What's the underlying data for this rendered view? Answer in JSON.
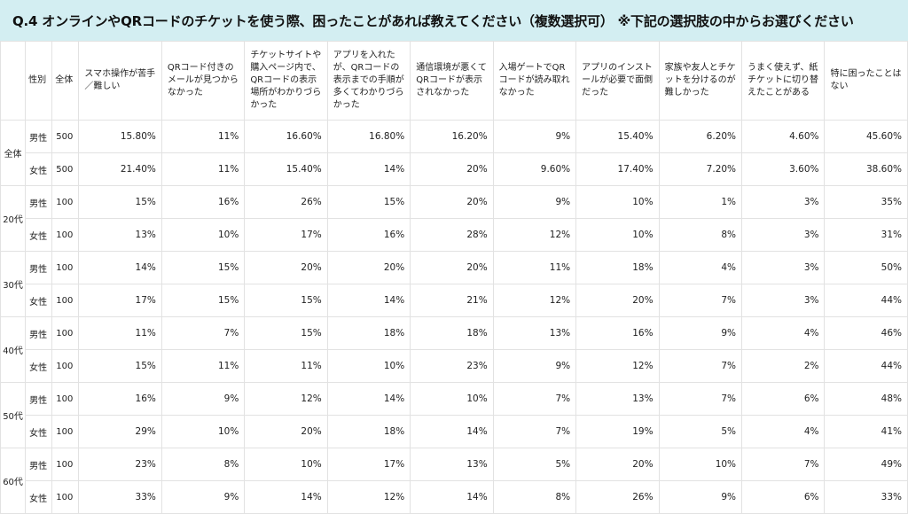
{
  "title": "Q.4 オンラインやQRコードのチケットを使う際、困ったことがあれば教えてください（複数選択可） ※下記の選択肢の中からお選びください",
  "columns": {
    "gender": "性別",
    "total": "全体",
    "options": [
      "スマホ操作が苦手／難しい",
      "QRコード付きのメールが見つからなかった",
      "チケットサイトや購入ページ内で、QRコードの表示場所がわかりづらかった",
      "アプリを入れたが、QRコードの表示までの手順が多くてわかりづらかった",
      "通信環境が悪くてQRコードが表示されなかった",
      "入場ゲートでQRコードが読み取れなかった",
      "アプリのインストールが必要で面倒だった",
      "家族や友人とチケットを分けるのが難しかった",
      "うまく使えず、紙チケットに切り替えたことがある",
      "特に困ったことはない"
    ]
  },
  "groups": [
    {
      "label": "全体",
      "rows": [
        {
          "gender": "男性",
          "n": "500",
          "values": [
            "15.80%",
            "11%",
            "16.60%",
            "16.80%",
            "16.20%",
            "9%",
            "15.40%",
            "6.20%",
            "4.60%",
            "45.60%"
          ]
        },
        {
          "gender": "女性",
          "n": "500",
          "values": [
            "21.40%",
            "11%",
            "15.40%",
            "14%",
            "20%",
            "9.60%",
            "17.40%",
            "7.20%",
            "3.60%",
            "38.60%"
          ]
        }
      ]
    },
    {
      "label": "20代",
      "rows": [
        {
          "gender": "男性",
          "n": "100",
          "values": [
            "15%",
            "16%",
            "26%",
            "15%",
            "20%",
            "9%",
            "10%",
            "1%",
            "3%",
            "35%"
          ]
        },
        {
          "gender": "女性",
          "n": "100",
          "values": [
            "13%",
            "10%",
            "17%",
            "16%",
            "28%",
            "12%",
            "10%",
            "8%",
            "3%",
            "31%"
          ]
        }
      ]
    },
    {
      "label": "30代",
      "rows": [
        {
          "gender": "男性",
          "n": "100",
          "values": [
            "14%",
            "15%",
            "20%",
            "20%",
            "20%",
            "11%",
            "18%",
            "4%",
            "3%",
            "50%"
          ]
        },
        {
          "gender": "女性",
          "n": "100",
          "values": [
            "17%",
            "15%",
            "15%",
            "14%",
            "21%",
            "12%",
            "20%",
            "7%",
            "3%",
            "44%"
          ]
        }
      ]
    },
    {
      "label": "40代",
      "rows": [
        {
          "gender": "男性",
          "n": "100",
          "values": [
            "11%",
            "7%",
            "15%",
            "18%",
            "18%",
            "13%",
            "16%",
            "9%",
            "4%",
            "46%"
          ]
        },
        {
          "gender": "女性",
          "n": "100",
          "values": [
            "15%",
            "11%",
            "11%",
            "10%",
            "23%",
            "9%",
            "12%",
            "7%",
            "2%",
            "44%"
          ]
        }
      ]
    },
    {
      "label": "50代",
      "rows": [
        {
          "gender": "男性",
          "n": "100",
          "values": [
            "16%",
            "9%",
            "12%",
            "14%",
            "10%",
            "7%",
            "13%",
            "7%",
            "6%",
            "48%"
          ]
        },
        {
          "gender": "女性",
          "n": "100",
          "values": [
            "29%",
            "10%",
            "20%",
            "18%",
            "14%",
            "7%",
            "19%",
            "5%",
            "4%",
            "41%"
          ]
        }
      ]
    },
    {
      "label": "60代",
      "rows": [
        {
          "gender": "男性",
          "n": "100",
          "values": [
            "23%",
            "8%",
            "10%",
            "17%",
            "13%",
            "5%",
            "20%",
            "10%",
            "7%",
            "49%"
          ]
        },
        {
          "gender": "女性",
          "n": "100",
          "values": [
            "33%",
            "9%",
            "14%",
            "12%",
            "14%",
            "8%",
            "26%",
            "9%",
            "6%",
            "33%"
          ]
        }
      ]
    }
  ]
}
